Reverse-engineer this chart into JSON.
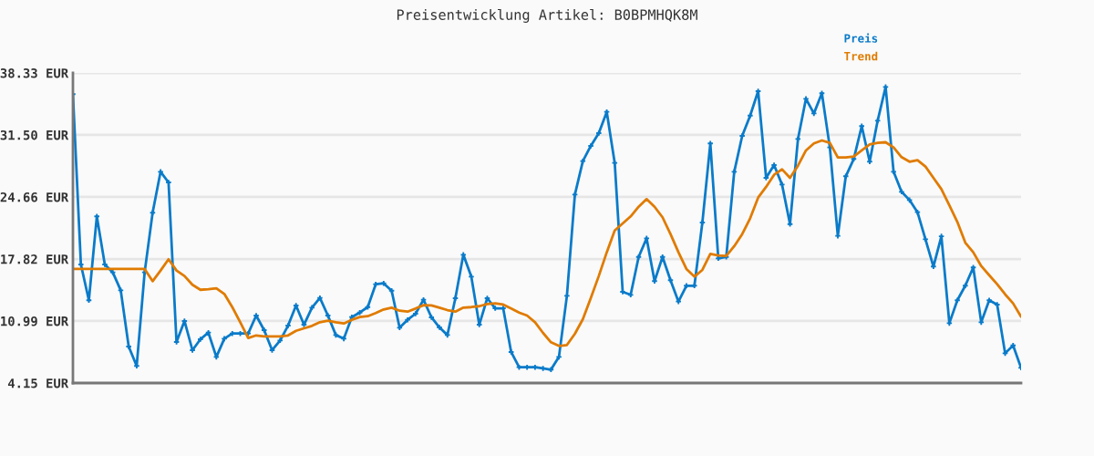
{
  "chart_data": {
    "type": "line",
    "title": "Preisentwicklung Artikel: B0BPMHQK8M",
    "categories": [
      null,
      null,
      null,
      null,
      null,
      null,
      null,
      null,
      null,
      null,
      null,
      null,
      null,
      null,
      null,
      null,
      null,
      null,
      null,
      null,
      null,
      null,
      null,
      null,
      null,
      null,
      null,
      null,
      null,
      null,
      null,
      null,
      null,
      null,
      null,
      null,
      null,
      null,
      null,
      null,
      null,
      null,
      null,
      null,
      null,
      null,
      null,
      null,
      null,
      null,
      null,
      null,
      null,
      null,
      null,
      null,
      null,
      null,
      null,
      null,
      null,
      null,
      null,
      null,
      null,
      null,
      null,
      null,
      null,
      null,
      null,
      null,
      null,
      null,
      null,
      null,
      null,
      null,
      null,
      null,
      null,
      null,
      null,
      null,
      null,
      null,
      null,
      null,
      null,
      null,
      null,
      null,
      null,
      null,
      null,
      null,
      null,
      null,
      null,
      null,
      null,
      null,
      null,
      null,
      null,
      null,
      null,
      null,
      null,
      null,
      null,
      null,
      null,
      null,
      null,
      null,
      null,
      null,
      null,
      null
    ],
    "series": [
      {
        "name": "Preis",
        "color": "#0a7bc9",
        "marker": "cross",
        "values": [
          35.99,
          17.22,
          13.27,
          22.52,
          17.22,
          16.35,
          14.37,
          8.17,
          6.03,
          16.35,
          22.92,
          27.44,
          26.27,
          8.67,
          10.99,
          7.77,
          8.98,
          9.71,
          7.03,
          9.04,
          9.61,
          9.61,
          9.61,
          11.59,
          9.98,
          7.77,
          8.84,
          10.48,
          12.7,
          10.58,
          12.46,
          13.53,
          11.59,
          9.44,
          9.04,
          11.42,
          11.92,
          12.52,
          15.04,
          15.14,
          14.33,
          10.25,
          11.12,
          11.79,
          13.33,
          11.39,
          10.28,
          9.44,
          13.5,
          18.29,
          15.88,
          10.58,
          13.5,
          12.39,
          12.39,
          7.57,
          5.89,
          5.89,
          5.89,
          5.76,
          5.63,
          7.03,
          13.77,
          24.92,
          28.61,
          30.29,
          31.69,
          34.04,
          28.41,
          14.2,
          13.87,
          18.05,
          20.1,
          15.38,
          18.05,
          15.48,
          13.13,
          14.88,
          14.88,
          21.84,
          30.56,
          17.89,
          18.05,
          27.44,
          31.39,
          33.63,
          36.32,
          26.77,
          28.18,
          26.03,
          21.67,
          31.05,
          35.48,
          33.87,
          36.09,
          30.12,
          20.37,
          26.94,
          28.85,
          32.47,
          28.55,
          33.07,
          36.79,
          27.44,
          25.23,
          24.32,
          22.98,
          20.0,
          16.99,
          20.33,
          10.75,
          13.27,
          14.88,
          16.89,
          10.85,
          13.27,
          12.8,
          7.43,
          8.3,
          5.83
        ]
      },
      {
        "name": "Trend",
        "color": "#e07b00",
        "values": [
          16.72,
          16.72,
          16.72,
          16.72,
          16.72,
          16.72,
          16.72,
          16.72,
          16.72,
          16.72,
          15.38,
          16.55,
          17.79,
          16.55,
          15.95,
          14.98,
          14.43,
          14.5,
          14.6,
          13.97,
          12.52,
          10.85,
          9.11,
          9.4,
          9.3,
          9.3,
          9.3,
          9.4,
          9.91,
          10.18,
          10.45,
          10.85,
          11.02,
          10.85,
          10.72,
          11.12,
          11.42,
          11.52,
          11.86,
          12.26,
          12.46,
          12.12,
          12.02,
          12.36,
          12.73,
          12.7,
          12.46,
          12.19,
          12.02,
          12.46,
          12.52,
          12.62,
          12.86,
          12.93,
          12.8,
          12.36,
          11.92,
          11.59,
          10.85,
          9.68,
          8.64,
          8.24,
          8.34,
          9.58,
          11.19,
          13.53,
          15.95,
          18.56,
          20.97,
          21.74,
          22.52,
          23.58,
          24.42,
          23.58,
          22.42,
          20.57,
          18.56,
          16.72,
          15.88,
          16.62,
          18.39,
          18.22,
          18.15,
          19.23,
          20.57,
          22.32,
          24.59,
          25.77,
          27.1,
          27.71,
          26.77,
          28.11,
          29.79,
          30.56,
          30.89,
          30.62,
          29.01,
          29.01,
          29.11,
          29.79,
          30.45,
          30.62,
          30.69,
          30.12,
          29.05,
          28.55,
          28.72,
          28.01,
          26.77,
          25.53,
          23.75,
          21.91,
          19.63,
          18.56,
          17.05,
          16.04,
          15.04,
          13.93,
          12.93,
          11.46
        ]
      }
    ],
    "ylim": [
      4.15,
      38.33
    ],
    "yticks": [
      {
        "value": 4.15,
        "label": "4.15 EUR"
      },
      {
        "value": 10.99,
        "label": "10.99 EUR"
      },
      {
        "value": 17.82,
        "label": "17.82 EUR"
      },
      {
        "value": 24.66,
        "label": "24.66 EUR"
      },
      {
        "value": 31.5,
        "label": "31.50 EUR"
      },
      {
        "value": 38.33,
        "label": "38.33 EUR"
      }
    ],
    "grid": "y",
    "legend": "top right",
    "tick_labels": "y",
    "line_style": "solid"
  }
}
